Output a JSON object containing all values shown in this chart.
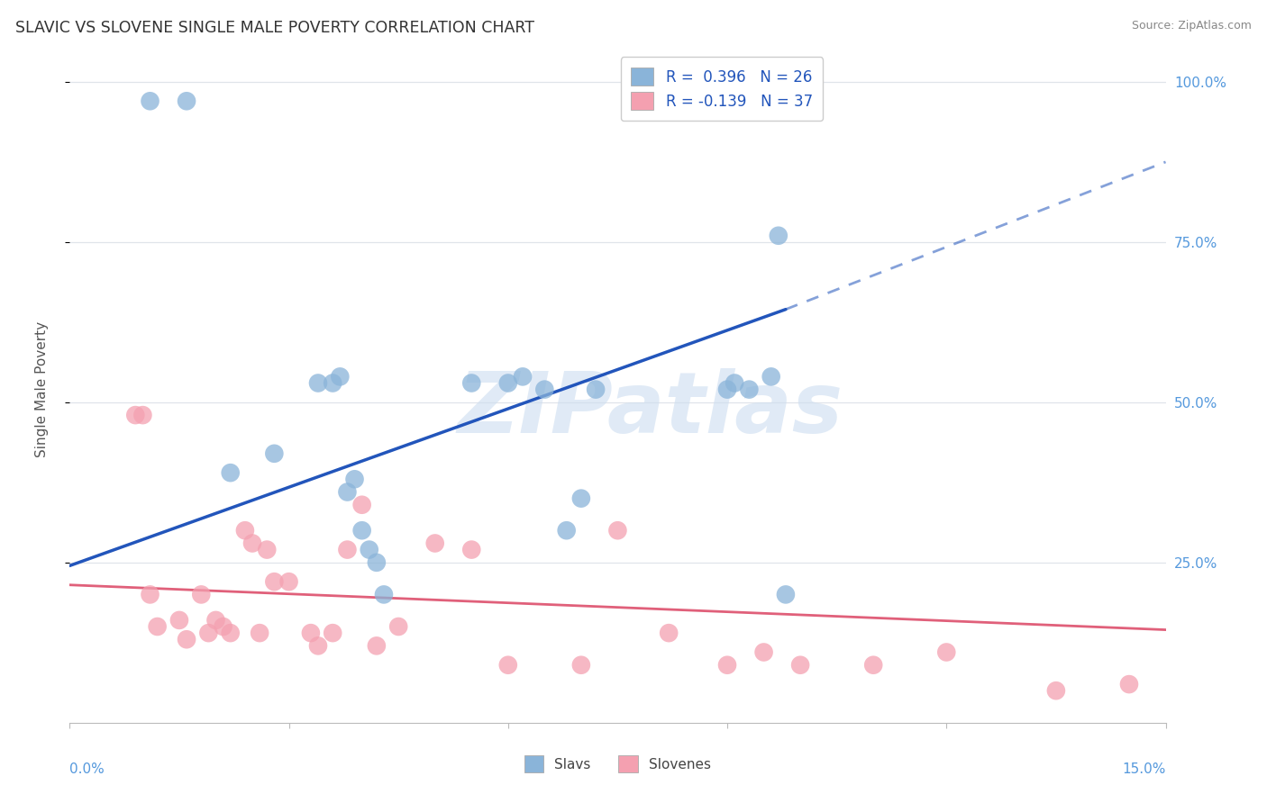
{
  "title": "SLAVIC VS SLOVENE SINGLE MALE POVERTY CORRELATION CHART",
  "source": "Source: ZipAtlas.com",
  "ylabel": "Single Male Poverty",
  "legend_blue_r": "R =  0.396",
  "legend_blue_n": "N = 26",
  "legend_pink_r": "R = -0.139",
  "legend_pink_n": "N = 37",
  "blue_scatter_color": "#8ab4d9",
  "pink_scatter_color": "#f4a0b0",
  "blue_line_color": "#2255bb",
  "pink_line_color": "#e0607a",
  "axis_label_color": "#5599dd",
  "watermark_color": "#ccddf0",
  "xmin": 0.0,
  "xmax": 0.15,
  "ymin": 0.0,
  "ymax": 1.04,
  "grid_color": "#e0e4ea",
  "background_color": "#ffffff",
  "slavs_x": [
    0.011,
    0.016,
    0.022,
    0.028,
    0.034,
    0.036,
    0.037,
    0.038,
    0.039,
    0.04,
    0.041,
    0.042,
    0.043,
    0.055,
    0.06,
    0.062,
    0.065,
    0.068,
    0.07,
    0.072,
    0.09,
    0.091,
    0.093,
    0.096,
    0.097,
    0.098
  ],
  "slavs_y": [
    0.97,
    0.97,
    0.39,
    0.42,
    0.53,
    0.53,
    0.54,
    0.36,
    0.38,
    0.3,
    0.27,
    0.25,
    0.2,
    0.53,
    0.53,
    0.54,
    0.52,
    0.3,
    0.35,
    0.52,
    0.52,
    0.53,
    0.52,
    0.54,
    0.76,
    0.2
  ],
  "slovenes_x": [
    0.009,
    0.01,
    0.011,
    0.012,
    0.015,
    0.016,
    0.018,
    0.019,
    0.02,
    0.021,
    0.022,
    0.024,
    0.025,
    0.026,
    0.027,
    0.028,
    0.03,
    0.033,
    0.034,
    0.036,
    0.038,
    0.04,
    0.042,
    0.045,
    0.05,
    0.055,
    0.06,
    0.07,
    0.075,
    0.082,
    0.09,
    0.095,
    0.1,
    0.11,
    0.12,
    0.135,
    0.145
  ],
  "slovenes_y": [
    0.48,
    0.48,
    0.2,
    0.15,
    0.16,
    0.13,
    0.2,
    0.14,
    0.16,
    0.15,
    0.14,
    0.3,
    0.28,
    0.14,
    0.27,
    0.22,
    0.22,
    0.14,
    0.12,
    0.14,
    0.27,
    0.34,
    0.12,
    0.15,
    0.28,
    0.27,
    0.09,
    0.09,
    0.3,
    0.14,
    0.09,
    0.11,
    0.09,
    0.09,
    0.11,
    0.05,
    0.06
  ],
  "blue_trend_x0": 0.0,
  "blue_trend_y0": 0.245,
  "blue_trend_x1": 0.098,
  "blue_trend_y1": 0.645,
  "blue_trend_xdash": 0.15,
  "blue_trend_ydash": 0.875,
  "pink_trend_x0": 0.0,
  "pink_trend_y0": 0.215,
  "pink_trend_x1": 0.15,
  "pink_trend_y1": 0.145
}
